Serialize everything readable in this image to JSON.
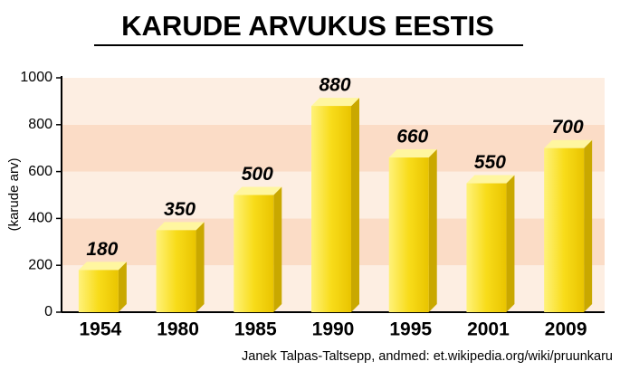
{
  "chart_data": {
    "type": "bar",
    "title": "KARUDE ARVUKUS EESTIS",
    "y_label": "(karude arv)",
    "categories": [
      "1954",
      "1980",
      "1985",
      "1990",
      "1995",
      "2001",
      "2009"
    ],
    "values": [
      180,
      350,
      500,
      880,
      660,
      550,
      700
    ],
    "color": "#f5d800",
    "ylim": [
      0,
      1000
    ],
    "yticks": [
      0,
      200,
      400,
      600,
      800,
      1000
    ],
    "band_colors": [
      "#fdeee2",
      "#fbdcc6"
    ],
    "source": "Janek Talpas-Taltsepp, andmed: et.wikipedia.org/wiki/pruunkaru"
  }
}
